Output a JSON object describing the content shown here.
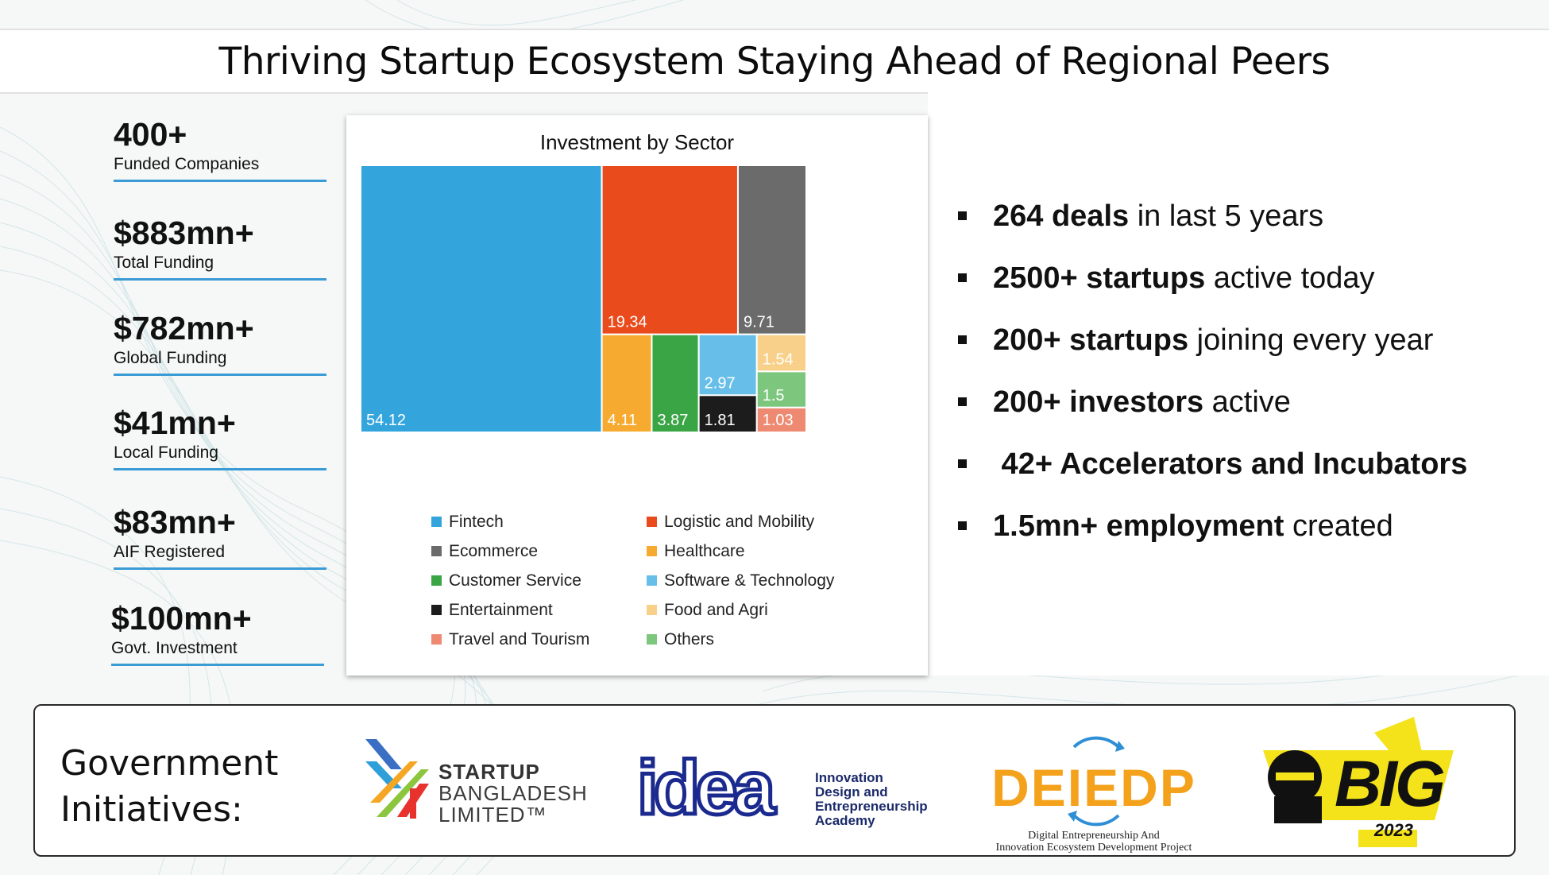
{
  "title": "Thriving Startup Ecosystem Staying Ahead of Regional Peers",
  "stats": [
    {
      "value": "400+",
      "label": "Funded Companies"
    },
    {
      "value": "$883mn+",
      "label": "Total Funding"
    },
    {
      "value": "$782mn+",
      "label": "Global Funding"
    },
    {
      "value": "$41mn+",
      "label": "Local Funding"
    },
    {
      "value": "$83mn+",
      "label": "AIF Registered"
    },
    {
      "value": "$100mn+",
      "label": "Govt. Investment"
    }
  ],
  "bullets": [
    {
      "bold": "264 deals",
      "rest": " in last 5 years"
    },
    {
      "bold": "2500+ startups",
      "rest": " active today"
    },
    {
      "bold": "200+ startups",
      "rest": " joining every year"
    },
    {
      "bold": "200+ investors",
      "rest": " active"
    },
    {
      "bold": " 42+ Accelerators and Incubators",
      "rest": ""
    },
    {
      "bold": "1.5mn+ employment",
      "rest": " created"
    }
  ],
  "chart_data": {
    "type": "treemap",
    "title": "Investment by Sector",
    "series": [
      {
        "name": "Fintech",
        "value": 54.12,
        "label": "54.12",
        "color": "#33a5dc"
      },
      {
        "name": "Logistic and Mobility",
        "value": 19.34,
        "label": "19.34",
        "color": "#e94b1c"
      },
      {
        "name": "Ecommerce",
        "value": 9.71,
        "label": "9.71",
        "color": "#6b6b6b"
      },
      {
        "name": "Healthcare",
        "value": 4.11,
        "label": "4.11",
        "color": "#f6ab30"
      },
      {
        "name": "Customer Service",
        "value": 3.87,
        "label": "3.87",
        "color": "#3aa545"
      },
      {
        "name": "Software & Technology",
        "value": 2.97,
        "label": "2.97",
        "color": "#67bfe9"
      },
      {
        "name": "Entertainment",
        "value": 1.81,
        "label": "1.81",
        "color": "#1c1c1c"
      },
      {
        "name": "Food and Agri",
        "value": 1.54,
        "label": "1.54",
        "color": "#f8d08a"
      },
      {
        "name": "Others",
        "value": 1.5,
        "label": "1.5",
        "color": "#7cc77d"
      },
      {
        "name": "Travel and Tourism",
        "value": 1.03,
        "label": "1.03",
        "color": "#ee8a72"
      }
    ],
    "legend": [
      [
        "Fintech",
        "Logistic and Mobility"
      ],
      [
        "Ecommerce",
        "Healthcare"
      ],
      [
        "Customer Service",
        "Software & Technology"
      ],
      [
        "Entertainment",
        "Food and Agri"
      ],
      [
        "Travel and Tourism",
        "Others"
      ]
    ]
  },
  "government": {
    "label_line1": "Government",
    "label_line2": "Initiatives:",
    "logos": {
      "startup_bangladesh": {
        "line1": "STARTUP",
        "line2": "BANGLADESH",
        "line3": "LIMITED™"
      },
      "idea": {
        "wordmark": "idea",
        "line1": "Innovation",
        "line2": "Design and",
        "line3": "Entrepreneurship",
        "line4": "Academy"
      },
      "deiedp": {
        "wordmark": "DEIEDP",
        "line1": "Digital Entrepreneurship And",
        "line2": "Innovation Ecosystem Development Project"
      },
      "big": {
        "wordmark": "BIG",
        "year": "2023"
      }
    }
  }
}
